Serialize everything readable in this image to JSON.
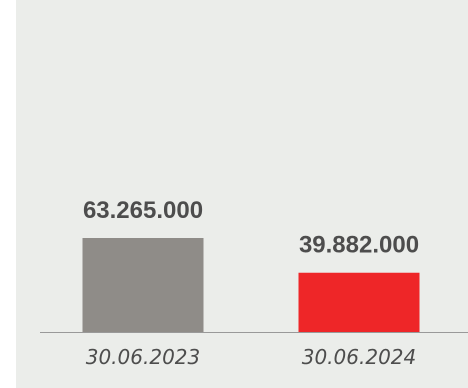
{
  "chart_data": {
    "type": "bar",
    "categories": [
      "30.06.2023",
      "30.06.2024"
    ],
    "values": [
      63265000,
      39882000
    ],
    "value_labels": [
      "63.265.000",
      "39.882.000"
    ],
    "colors": [
      "#8f8c88",
      "#ee2628"
    ],
    "axis_color": "#999999",
    "background": "#ebedea",
    "grid": false,
    "legend": "none",
    "title": "",
    "xlabel": "",
    "ylabel": ""
  }
}
